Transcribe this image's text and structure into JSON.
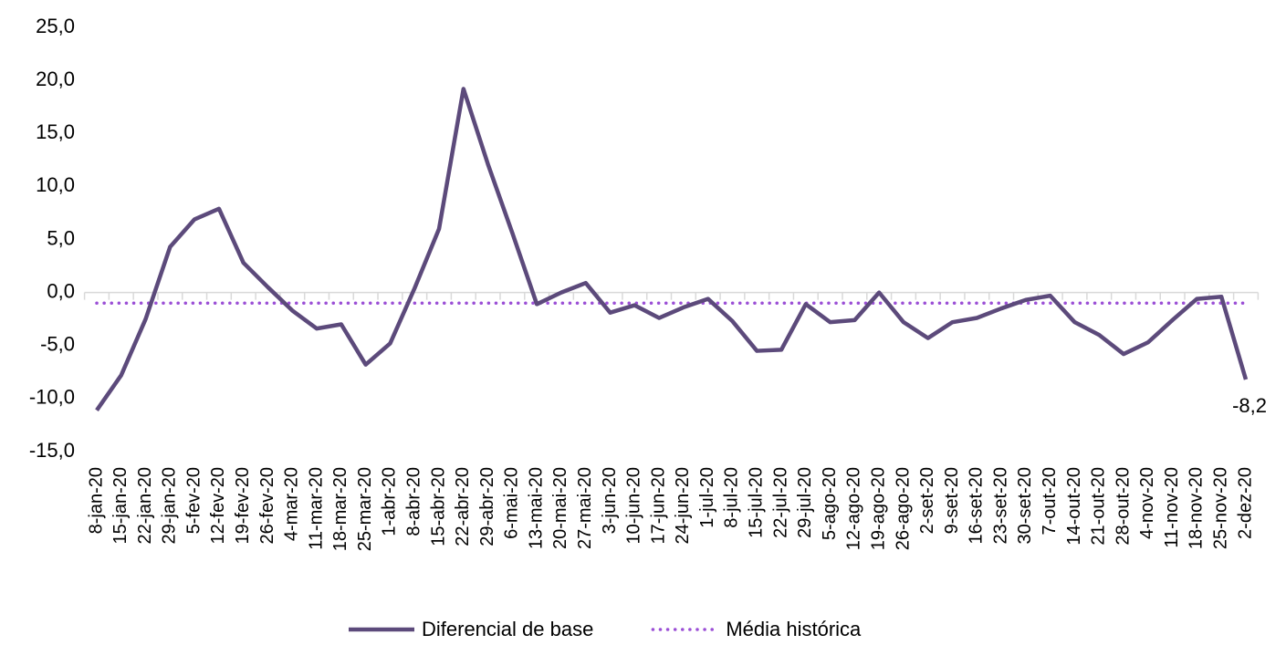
{
  "chart_data": {
    "type": "line",
    "categories": [
      "8-jan-20",
      "15-jan-20",
      "22-jan-20",
      "29-jan-20",
      "5-fev-20",
      "12-fev-20",
      "19-fev-20",
      "26-fev-20",
      "4-mar-20",
      "11-mar-20",
      "18-mar-20",
      "25-mar-20",
      "1-abr-20",
      "8-abr-20",
      "15-abr-20",
      "22-abr-20",
      "29-abr-20",
      "6-mai-20",
      "13-mai-20",
      "20-mai-20",
      "27-mai-20",
      "3-jun-20",
      "10-jun-20",
      "17-jun-20",
      "24-jun-20",
      "1-jul-20",
      "8-jul-20",
      "15-jul-20",
      "22-jul-20",
      "29-jul-20",
      "5-ago-20",
      "12-ago-20",
      "19-ago-20",
      "26-ago-20",
      "2-set-20",
      "9-set-20",
      "16-set-20",
      "23-set-20",
      "30-set-20",
      "7-out-20",
      "14-out-20",
      "21-out-20",
      "28-out-20",
      "4-nov-20",
      "11-nov-20",
      "18-nov-20",
      "25-nov-20",
      "2-dez-20"
    ],
    "series": [
      {
        "name": "Diferencial de base",
        "color": "#5c4a7b",
        "style": "solid",
        "values": [
          -11.1,
          -7.8,
          -2.5,
          4.3,
          6.9,
          7.9,
          2.8,
          0.5,
          -1.7,
          -3.4,
          -3.0,
          -6.8,
          -4.8,
          0.4,
          6.0,
          19.2,
          12.1,
          5.6,
          -1.1,
          0.0,
          0.9,
          -1.9,
          -1.2,
          -2.4,
          -1.4,
          -0.6,
          -2.7,
          -5.5,
          -5.4,
          -1.1,
          -2.8,
          -2.6,
          0.0,
          -2.8,
          -4.3,
          -2.8,
          -2.4,
          -1.5,
          -0.7,
          -0.3,
          -2.8,
          -4.0,
          -5.8,
          -4.7,
          -2.6,
          -0.6,
          -0.4,
          -8.2
        ],
        "value_labels": [
          null,
          null,
          null,
          null,
          null,
          null,
          null,
          null,
          null,
          null,
          null,
          null,
          null,
          null,
          null,
          null,
          null,
          null,
          null,
          null,
          null,
          null,
          null,
          null,
          null,
          null,
          null,
          null,
          null,
          null,
          null,
          null,
          null,
          null,
          null,
          null,
          null,
          null,
          null,
          null,
          null,
          null,
          null,
          null,
          null,
          null,
          null,
          "-8,2"
        ]
      },
      {
        "name": "Média histórica",
        "color": "#9b4fd6",
        "style": "dotted",
        "values": [
          -1.0,
          -1.0,
          -1.0,
          -1.0,
          -1.0,
          -1.0,
          -1.0,
          -1.0,
          -1.0,
          -1.0,
          -1.0,
          -1.0,
          -1.0,
          -1.0,
          -1.0,
          -1.0,
          -1.0,
          -1.0,
          -1.0,
          -1.0,
          -1.0,
          -1.0,
          -1.0,
          -1.0,
          -1.0,
          -1.0,
          -1.0,
          -1.0,
          -1.0,
          -1.0,
          -1.0,
          -1.0,
          -1.0,
          -1.0,
          -1.0,
          -1.0,
          -1.0,
          -1.0,
          -1.0,
          -1.0,
          -1.0,
          -1.0,
          -1.0,
          -1.0,
          -1.0,
          -1.0,
          -1.0,
          -1.0
        ]
      }
    ],
    "ylim": [
      -15,
      25
    ],
    "yticks": [
      {
        "value": -15,
        "label": "-15,0"
      },
      {
        "value": -10,
        "label": "-10,0"
      },
      {
        "value": -5,
        "label": "-5,0"
      },
      {
        "value": 0,
        "label": "0,0"
      },
      {
        "value": 5,
        "label": "5,0"
      },
      {
        "value": 10,
        "label": "10,0"
      },
      {
        "value": 15,
        "label": "15,0"
      },
      {
        "value": 20,
        "label": "20,0"
      },
      {
        "value": 25,
        "label": "25,0"
      }
    ],
    "grid": false,
    "legend": "bottom"
  }
}
